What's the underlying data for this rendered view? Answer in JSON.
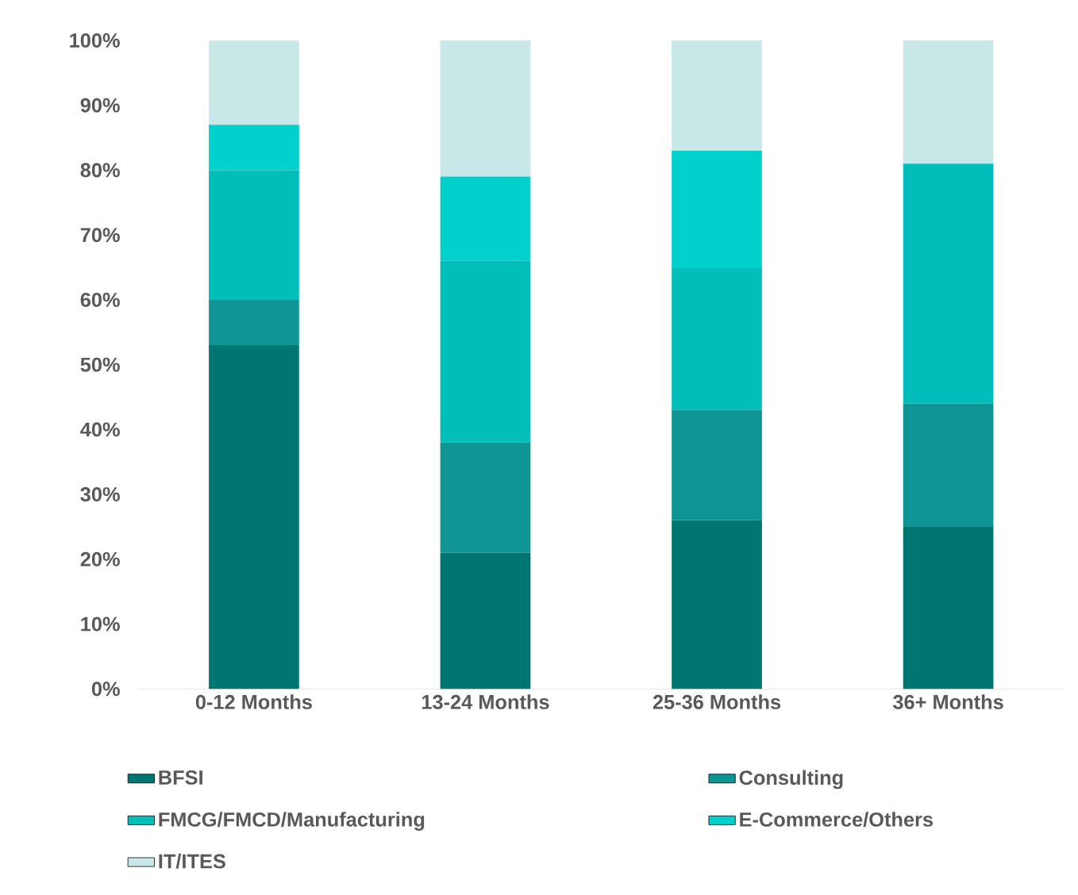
{
  "chart_data": {
    "type": "bar",
    "stacked": true,
    "categories": [
      "0-12 Months",
      "13-24 Months",
      "25-36 Months",
      "36+ Months"
    ],
    "series": [
      {
        "name": "BFSI",
        "color": "#007672",
        "values": [
          53,
          21,
          26,
          25
        ]
      },
      {
        "name": "Consulting",
        "color": "#0f9694",
        "values": [
          7,
          17,
          17,
          19
        ]
      },
      {
        "name": "FMCG/FMCD/Manufacturing",
        "color": "#00bfbb",
        "values": [
          20,
          28,
          22,
          37
        ]
      },
      {
        "name": "E-Commerce/Others",
        "color": "#00d1cc",
        "values": [
          7,
          13,
          18,
          0
        ]
      },
      {
        "name": "IT/ITES",
        "color": "#c8e8e8",
        "values": [
          13,
          21,
          17,
          19
        ]
      }
    ],
    "ylim": [
      0,
      100
    ],
    "yticks": [
      {
        "value": 0,
        "label": "0%"
      },
      {
        "value": 10,
        "label": "10%"
      },
      {
        "value": 20,
        "label": "20%"
      },
      {
        "value": 30,
        "label": "30%"
      },
      {
        "value": 40,
        "label": "40%"
      },
      {
        "value": 50,
        "label": "50%"
      },
      {
        "value": 60,
        "label": "60%"
      },
      {
        "value": 70,
        "label": "70%"
      },
      {
        "value": 80,
        "label": "80%"
      },
      {
        "value": 90,
        "label": "90%"
      },
      {
        "value": 100,
        "label": "100%"
      }
    ],
    "legend": "bottom"
  }
}
